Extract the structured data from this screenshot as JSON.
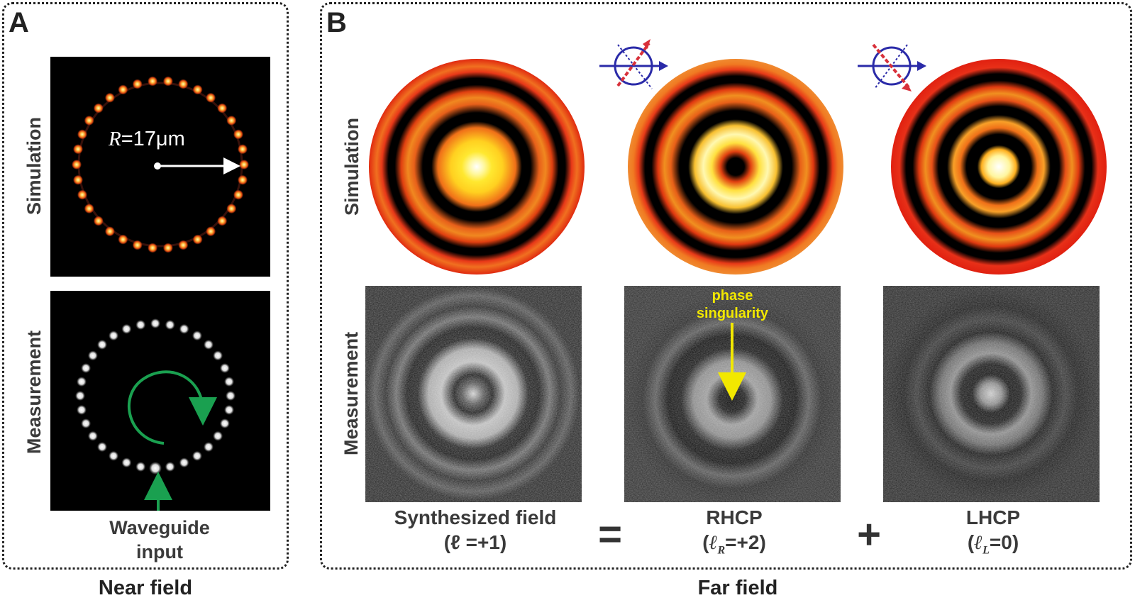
{
  "panels": {
    "a": {
      "letter": "A",
      "bottom_title": "Near field"
    },
    "b": {
      "letter": "B",
      "bottom_title": "Far field"
    }
  },
  "row_labels": {
    "a_simulation": "Simulation",
    "a_measurement": "Measurement",
    "b_simulation": "Simulation",
    "b_measurement": "Measurement"
  },
  "near_field": {
    "radius_symbol": "R",
    "radius_value": "=17μm",
    "input_label_line1": "Waveguide",
    "input_label_line2": "input"
  },
  "far_field": {
    "annotation_line1": "phase",
    "annotation_line2": "singularity",
    "columns": [
      {
        "title": "Synthesized field",
        "sub_prefix": "(ℓ =+1)",
        "sub_symbol": "",
        "sub_subscript": "",
        "sub_suffix": ""
      },
      {
        "title": "RHCP",
        "sub_prefix": "(",
        "sub_symbol": "ℓ",
        "sub_subscript": "R",
        "sub_suffix": "=+2)"
      },
      {
        "title": "LHCP",
        "sub_prefix": "(",
        "sub_symbol": "ℓ",
        "sub_subscript": "L",
        "sub_suffix": "=0)"
      }
    ],
    "operators": {
      "equals": "=",
      "plus": "+"
    }
  },
  "colors": {
    "hot_red": "#e02a10",
    "hot_orange": "#f07020",
    "hot_yellow": "#ffe020",
    "arrow_green": "#1aa050",
    "annotation_yellow": "#f2e800",
    "polarizer_blue": "#2a2aa8",
    "polarizer_red": "#d8303a"
  }
}
